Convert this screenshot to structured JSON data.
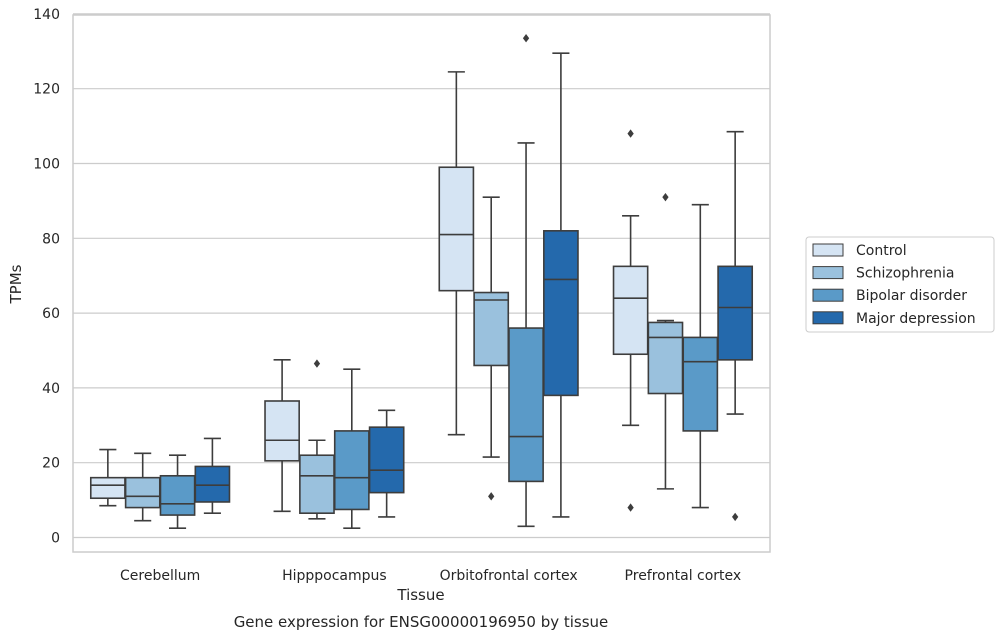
{
  "chart_data": {
    "type": "box",
    "xlabel": "Tissue",
    "ylabel": "TPMs",
    "caption": "Gene expression for ENSG00000196950 by tissue",
    "ylim": [
      -4,
      140
    ],
    "yticks": [
      0,
      20,
      40,
      60,
      80,
      100,
      120,
      140
    ],
    "grid": "horizontal",
    "legend_position": "right",
    "categories": [
      "Cerebellum",
      "Hipppocampus",
      "Orbitofrontal cortex",
      "Prefrontal cortex"
    ],
    "series": [
      {
        "name": "Control",
        "color": "#d5e4f3",
        "boxes": [
          {
            "whislo": 8.5,
            "q1": 10.5,
            "med": 14,
            "q3": 16,
            "whishi": 23.5,
            "fliers": []
          },
          {
            "whislo": 7,
            "q1": 20.5,
            "med": 26,
            "q3": 36.5,
            "whishi": 47.5,
            "fliers": []
          },
          {
            "whislo": 27.5,
            "q1": 66,
            "med": 81,
            "q3": 99,
            "whishi": 124.5,
            "fliers": []
          },
          {
            "whislo": 30,
            "q1": 49,
            "med": 64,
            "q3": 72.5,
            "whishi": 86,
            "fliers": [
              108,
              8
            ]
          }
        ]
      },
      {
        "name": "Schizophrenia",
        "color": "#9ac1dd",
        "boxes": [
          {
            "whislo": 4.5,
            "q1": 8,
            "med": 11,
            "q3": 16,
            "whishi": 22.5,
            "fliers": []
          },
          {
            "whislo": 5,
            "q1": 6.5,
            "med": 16.5,
            "q3": 22,
            "whishi": 26,
            "fliers": [
              46.5
            ]
          },
          {
            "whislo": 21.5,
            "q1": 46,
            "med": 63.5,
            "q3": 65.5,
            "whishi": 91,
            "fliers": [
              11
            ]
          },
          {
            "whislo": 13,
            "q1": 38.5,
            "med": 53.5,
            "q3": 57.5,
            "whishi": 58,
            "fliers": [
              91
            ]
          }
        ]
      },
      {
        "name": "Bipolar disorder",
        "color": "#5a9ac8",
        "boxes": [
          {
            "whislo": 2.5,
            "q1": 6,
            "med": 9,
            "q3": 16.5,
            "whishi": 22,
            "fliers": []
          },
          {
            "whislo": 2.5,
            "q1": 7.5,
            "med": 16,
            "q3": 28.5,
            "whishi": 45,
            "fliers": []
          },
          {
            "whislo": 3,
            "q1": 15,
            "med": 27,
            "q3": 56,
            "whishi": 105.5,
            "fliers": [
              133.5
            ]
          },
          {
            "whislo": 8,
            "q1": 28.5,
            "med": 47,
            "q3": 53.5,
            "whishi": 89,
            "fliers": []
          }
        ]
      },
      {
        "name": "Major depression",
        "color": "#2469ac",
        "boxes": [
          {
            "whislo": 6.5,
            "q1": 9.5,
            "med": 14,
            "q3": 19,
            "whishi": 26.5,
            "fliers": []
          },
          {
            "whislo": 5.5,
            "q1": 12,
            "med": 18,
            "q3": 29.5,
            "whishi": 34,
            "fliers": []
          },
          {
            "whislo": 5.5,
            "q1": 38,
            "med": 69,
            "q3": 82,
            "whishi": 129.5,
            "fliers": []
          },
          {
            "whislo": 33,
            "q1": 47.5,
            "med": 61.5,
            "q3": 72.5,
            "whishi": 108.5,
            "fliers": [
              5.5
            ]
          }
        ]
      }
    ]
  }
}
